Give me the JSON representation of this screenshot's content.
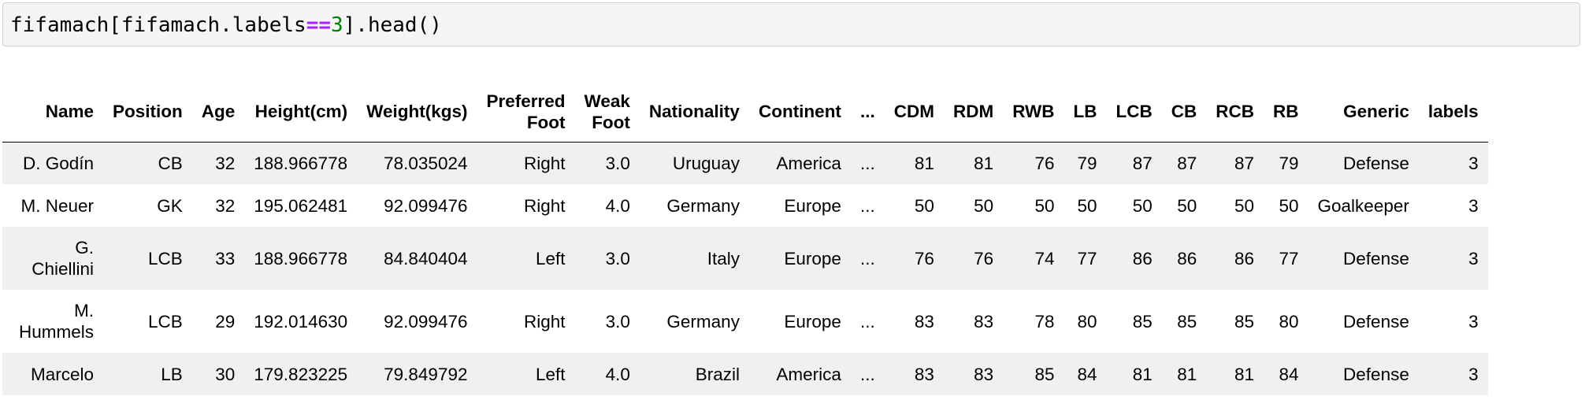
{
  "code": {
    "part1": "fifamach[fifamach.labels",
    "op": "==",
    "num": "3",
    "part2": "].head()"
  },
  "table": {
    "columns": [
      "Name",
      "Position",
      "Age",
      "Height(cm)",
      "Weight(kgs)",
      "Preferred Foot",
      "Weak Foot",
      "Nationality",
      "Continent",
      "...",
      "CDM",
      "RDM",
      "RWB",
      "LB",
      "LCB",
      "CB",
      "RCB",
      "RB",
      "Generic",
      "labels"
    ],
    "rows": [
      [
        "D. Godín",
        "CB",
        "32",
        "188.966778",
        "78.035024",
        "Right",
        "3.0",
        "Uruguay",
        "America",
        "...",
        "81",
        "81",
        "76",
        "79",
        "87",
        "87",
        "87",
        "79",
        "Defense",
        "3"
      ],
      [
        "M. Neuer",
        "GK",
        "32",
        "195.062481",
        "92.099476",
        "Right",
        "4.0",
        "Germany",
        "Europe",
        "...",
        "50",
        "50",
        "50",
        "50",
        "50",
        "50",
        "50",
        "50",
        "Goalkeeper",
        "3"
      ],
      [
        "G. Chiellini",
        "LCB",
        "33",
        "188.966778",
        "84.840404",
        "Left",
        "3.0",
        "Italy",
        "Europe",
        "...",
        "76",
        "76",
        "74",
        "77",
        "86",
        "86",
        "86",
        "77",
        "Defense",
        "3"
      ],
      [
        "M. Hummels",
        "LCB",
        "29",
        "192.014630",
        "92.099476",
        "Right",
        "3.0",
        "Germany",
        "Europe",
        "...",
        "83",
        "83",
        "78",
        "80",
        "85",
        "85",
        "85",
        "80",
        "Defense",
        "3"
      ],
      [
        "Marcelo",
        "LB",
        "30",
        "179.823225",
        "79.849792",
        "Left",
        "4.0",
        "Brazil",
        "America",
        "...",
        "83",
        "83",
        "85",
        "84",
        "81",
        "81",
        "81",
        "84",
        "Defense",
        "3"
      ]
    ]
  }
}
